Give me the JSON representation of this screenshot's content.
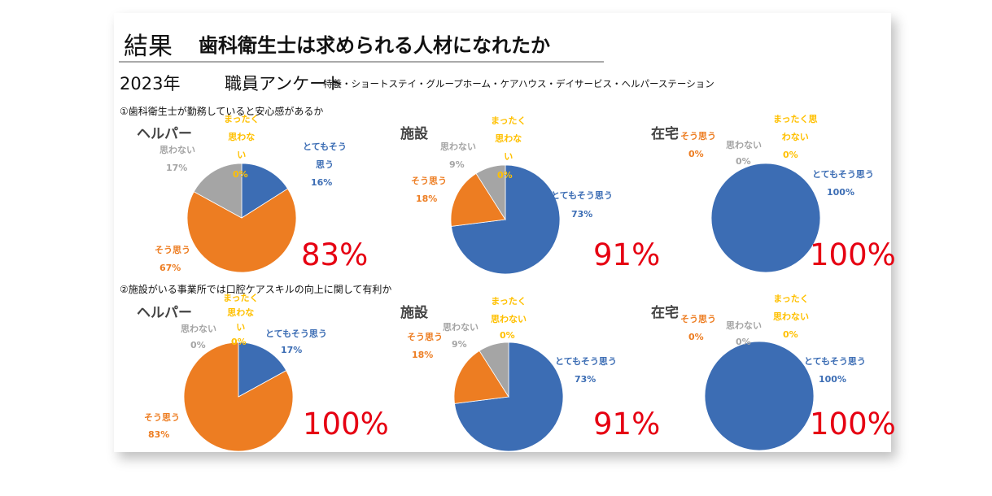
{
  "header": {
    "title_prefix": "結果",
    "title": "歯科衛生士は求められる人材になれたか",
    "year": "2023年",
    "survey": "職員アンケート",
    "facilities": "特養・ショートステイ・グループホーム・ケアハウス・デイサービス・ヘルパーステーション"
  },
  "questions": [
    "①歯科衛生士が勤務していると安心感があるか",
    "②施設がいる事業所では口腔ケアスキルの向上に関して有利か"
  ],
  "colors": {
    "とてもそう思う": "#3C6DB4",
    "そう思う": "#ED7D22",
    "思わない": "#A5A5A5",
    "まったく思わない": "#FFC000",
    "highlight": "#E60012"
  },
  "chart_data": [
    {
      "type": "pie",
      "question": "①",
      "title": "ヘルパー",
      "categories": [
        "とてもそう思う",
        "そう思う",
        "思わない",
        "まったく思わない"
      ],
      "values": [
        16,
        67,
        17,
        0
      ],
      "positive_total": "83%"
    },
    {
      "type": "pie",
      "question": "①",
      "title": "施設",
      "categories": [
        "とてもそう思う",
        "そう思う",
        "思わない",
        "まったく思わない"
      ],
      "values": [
        73,
        18,
        9,
        0
      ],
      "positive_total": "91%"
    },
    {
      "type": "pie",
      "question": "①",
      "title": "在宅",
      "categories": [
        "とてもそう思う",
        "そう思う",
        "思わない",
        "まったく思わない"
      ],
      "values": [
        100,
        0,
        0,
        0
      ],
      "positive_total": "100%"
    },
    {
      "type": "pie",
      "question": "②",
      "title": "ヘルパー",
      "categories": [
        "とてもそう思う",
        "そう思う",
        "思わない",
        "まったく思わない"
      ],
      "values": [
        17,
        83,
        0,
        0
      ],
      "positive_total": "100%"
    },
    {
      "type": "pie",
      "question": "②",
      "title": "施設",
      "categories": [
        "とてもそう思う",
        "そう思う",
        "思わない",
        "まったく思わない"
      ],
      "values": [
        73,
        18,
        9,
        0
      ],
      "positive_total": "91%"
    },
    {
      "type": "pie",
      "question": "②",
      "title": "在宅",
      "categories": [
        "とてもそう思う",
        "そう思う",
        "思わない",
        "まったく思わない"
      ],
      "values": [
        100,
        0,
        0,
        0
      ],
      "positive_total": "100%"
    }
  ],
  "labels": {
    "very": "とてもそう思う",
    "very_wrapped": "とてもそう\n思う",
    "yes": "そう思う",
    "no": "思わない",
    "not_at_all": "まったく\n思わな\nい",
    "not_at_all_b": "まったく\n思わない",
    "not_at_all_c": "まったく思\nわない",
    "p0": "0%",
    "p16": "16%",
    "p67": "67%",
    "p17": "17%",
    "p73": "73%",
    "p18": "18%",
    "p9": "9%",
    "p100": "100%",
    "p83": "83%"
  }
}
